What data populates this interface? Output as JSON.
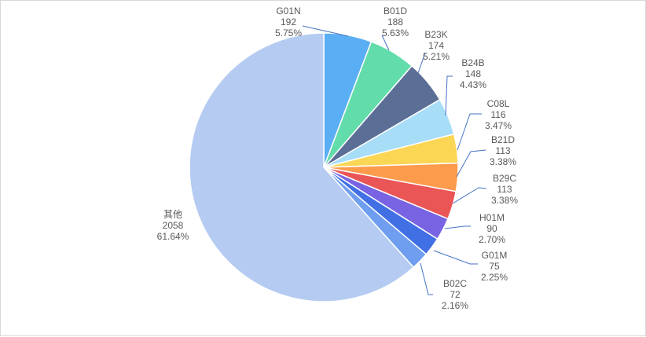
{
  "chart_data": {
    "type": "pie",
    "title": "",
    "slices": [
      {
        "name": "G01N",
        "value": 192,
        "percent": "5.75%",
        "color": "#5aaef4"
      },
      {
        "name": "B01D",
        "value": 188,
        "percent": "5.63%",
        "color": "#63dcab"
      },
      {
        "name": "B23K",
        "value": 174,
        "percent": "5.21%",
        "color": "#5b6e96"
      },
      {
        "name": "B24B",
        "value": 148,
        "percent": "4.43%",
        "color": "#a8ddf8"
      },
      {
        "name": "C08L",
        "value": 116,
        "percent": "3.47%",
        "color": "#fbd654"
      },
      {
        "name": "B21D",
        "value": 113,
        "percent": "3.38%",
        "color": "#fd9b4c"
      },
      {
        "name": "B29C",
        "value": 113,
        "percent": "3.38%",
        "color": "#ea5556"
      },
      {
        "name": "H01M",
        "value": 90,
        "percent": "2.70%",
        "color": "#7864e2"
      },
      {
        "name": "G01M",
        "value": 75,
        "percent": "2.25%",
        "color": "#4170e4"
      },
      {
        "name": "B02C",
        "value": 72,
        "percent": "2.16%",
        "color": "#6f9ef0"
      },
      {
        "name": "其他",
        "value": 2058,
        "percent": "61.64%",
        "color": "#b5cbf1"
      }
    ],
    "leader_line_color": "#4472c4",
    "legend": "none"
  }
}
